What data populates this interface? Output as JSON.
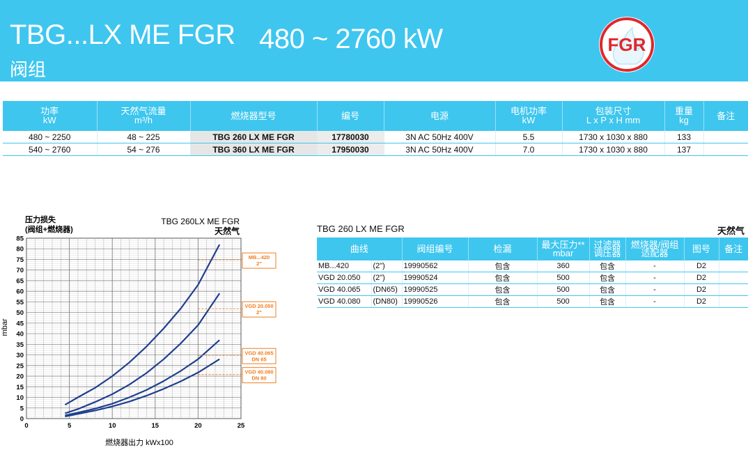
{
  "header": {
    "model": "TBG...LX ME FGR",
    "power_range": "480 ~ 2760 kW",
    "subtitle": "阀组",
    "logo_text": "FGR",
    "colors": {
      "banner": "#3ec6ef",
      "logo_red": "#e0262d"
    }
  },
  "main_table": {
    "headers": [
      {
        "line1": "功率",
        "line2": "kW"
      },
      {
        "line1": "天然气流量",
        "line2": "m³/h"
      },
      {
        "line1": "燃烧器型号",
        "line2": ""
      },
      {
        "line1": "编号",
        "line2": ""
      },
      {
        "line1": "电源",
        "line2": ""
      },
      {
        "line1": "电机功率",
        "line2": "kW"
      },
      {
        "line1": "包装尺寸",
        "line2": "L x P x H  mm"
      },
      {
        "line1": "重量",
        "line2": "kg"
      },
      {
        "line1": "备注",
        "line2": ""
      }
    ],
    "rows": [
      [
        "480 ~ 2250",
        "48 ~ 225",
        "TBG 260 LX ME FGR",
        "17780030",
        "3N AC 50Hz 400V",
        "5.5",
        "1730 x 1030 x 880",
        "133",
        ""
      ],
      [
        "540 ~ 2760",
        "54 ~ 276",
        "TBG 360 LX ME FGR",
        "17950030",
        "3N AC 50Hz 400V",
        "7.0",
        "1730 x 1030 x 880",
        "137",
        ""
      ]
    ]
  },
  "chart_data": {
    "type": "line",
    "title": "TBG 260LX ME FGR",
    "gas_label": "天然气",
    "ylabel_top": "压力损失",
    "ylabel_top2": "(阀组+燃烧器)",
    "ylabel": "mbar",
    "xlabel": "燃烧器出力   kWx100",
    "xlim": [
      0,
      25
    ],
    "ylim": [
      0,
      85
    ],
    "xticks": [
      "0",
      "5",
      "10",
      "15",
      "20",
      "25"
    ],
    "yticks": [
      "0",
      "5",
      "10",
      "15",
      "20",
      "25",
      "30",
      "35",
      "40",
      "45",
      "50",
      "55",
      "60",
      "65",
      "70",
      "75",
      "80",
      "85"
    ],
    "grid": true,
    "line_color": "#1f3f8f",
    "label_color": "#f07d20",
    "series": [
      {
        "name": "MB...420\n2\"",
        "x": [
          4.5,
          6,
          8,
          10,
          12,
          14,
          16,
          18,
          20,
          22.5
        ],
        "y": [
          6.5,
          10,
          14.5,
          20,
          26.5,
          34,
          42.5,
          52,
          63,
          82
        ]
      },
      {
        "name": "VGD 20.050\n2\"",
        "x": [
          4.5,
          6,
          8,
          10,
          12,
          14,
          16,
          18,
          20,
          22.5
        ],
        "y": [
          2.5,
          4.5,
          7.8,
          11.5,
          16,
          21.5,
          28,
          35.5,
          44,
          59
        ]
      },
      {
        "name": "VGD 40.065\nDN 65",
        "x": [
          4.5,
          6,
          8,
          10,
          12,
          14,
          16,
          18,
          20,
          22.5
        ],
        "y": [
          1.5,
          2.8,
          4.7,
          7,
          10,
          13.5,
          17.7,
          22.5,
          28,
          37
        ]
      },
      {
        "name": "VGD 40.080\nDN 80",
        "x": [
          4.5,
          6,
          8,
          10,
          12,
          14,
          16,
          18,
          20,
          22.5
        ],
        "y": [
          1.0,
          2.2,
          3.8,
          5.7,
          8,
          10.8,
          14,
          17.6,
          21.7,
          28
        ]
      }
    ]
  },
  "valve_table": {
    "title": "TBG 260 LX ME FGR",
    "gas": "天然气",
    "headers": [
      {
        "line1": "曲线",
        "line2": ""
      },
      {
        "line1": "阀组编号",
        "line2": ""
      },
      {
        "line1": "检漏",
        "line2": ""
      },
      {
        "line1": "最大压力**",
        "line2": "mbar"
      },
      {
        "line1": "过滤器",
        "line2": "调压器"
      },
      {
        "line1": "燃烧器/阀组",
        "line2": "适配器"
      },
      {
        "line1": "图号",
        "line2": ""
      },
      {
        "line1": "备注",
        "line2": ""
      }
    ],
    "rows": [
      [
        "MB...420",
        "(2\")",
        "19990562",
        "包含",
        "360",
        "包含",
        "-",
        "D2",
        ""
      ],
      [
        "VGD 20.050",
        "(2\")",
        "19990524",
        "包含",
        "500",
        "包含",
        "-",
        "D2",
        ""
      ],
      [
        "VGD 40.065",
        "(DN65)",
        "19990525",
        "包含",
        "500",
        "包含",
        "-",
        "D2",
        ""
      ],
      [
        "VGD 40.080",
        "(DN80)",
        "19990526",
        "包含",
        "500",
        "包含",
        "-",
        "D2",
        ""
      ]
    ]
  }
}
